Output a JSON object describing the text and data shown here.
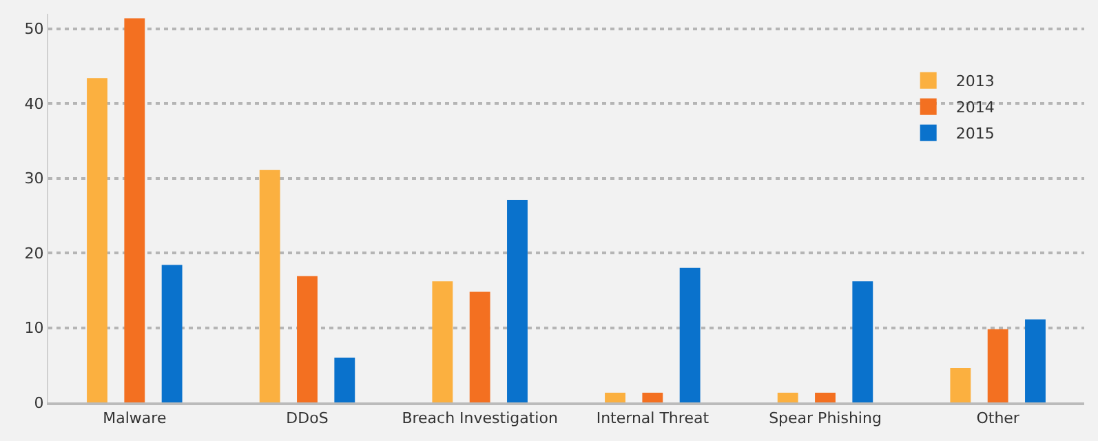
{
  "chart_data": {
    "type": "bar",
    "categories": [
      "Malware",
      "DDoS",
      "Breach Investigation",
      "Internal Threat",
      "Spear Phishing",
      "Other"
    ],
    "series": [
      {
        "name": "2013",
        "color": "#fbb040",
        "values": [
          43.4,
          31.1,
          16.2,
          1.3,
          1.3,
          4.6
        ]
      },
      {
        "name": "2014",
        "color": "#f37021",
        "values": [
          51.4,
          16.9,
          14.8,
          1.3,
          1.3,
          9.8
        ]
      },
      {
        "name": "2015",
        "color": "#0a72cc",
        "values": [
          18.4,
          6.0,
          27.1,
          18.0,
          16.2,
          11.1
        ]
      }
    ],
    "ylim": [
      0,
      52
    ],
    "yticks": [
      0,
      10,
      20,
      30,
      40,
      50
    ],
    "grid": "y",
    "legend": "top right"
  }
}
